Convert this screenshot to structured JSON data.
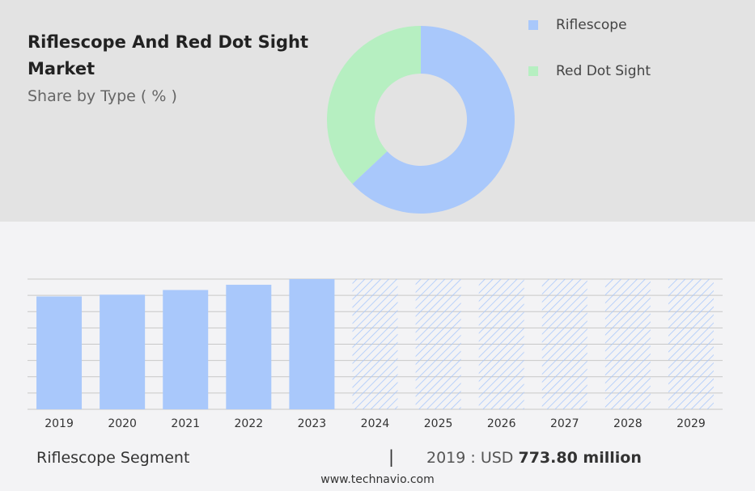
{
  "title": "Riflescope And Red Dot Sight Market",
  "subtitle": "Share by Type ( % )",
  "colors": {
    "riflescope": "#a9c8fb",
    "red_dot_sight": "#b6efc1",
    "forecast_hatch": "#a9c8fb",
    "grid": "#c8c8c8"
  },
  "legend": [
    {
      "label": "Riflescope",
      "color": "#a9c8fb"
    },
    {
      "label": "Red Dot Sight",
      "color": "#b6efc1"
    }
  ],
  "chart_data": [
    {
      "type": "pie",
      "subtype": "donut",
      "labels": [
        "Riflescope",
        "Red Dot Sight"
      ],
      "values": [
        63,
        37
      ],
      "colors": [
        "#a9c8fb",
        "#b6efc1"
      ]
    },
    {
      "type": "bar",
      "categories": [
        "2019",
        "2020",
        "2021",
        "2022",
        "2023",
        "2024",
        "2025",
        "2026",
        "2027",
        "2028",
        "2029"
      ],
      "values": [
        773.8,
        786,
        818,
        854,
        893,
        893,
        893,
        893,
        893,
        893,
        893
      ],
      "forecast_from": "2024",
      "forecast_style": "hatched",
      "ylim": [
        0,
        893
      ],
      "grid": true
    }
  ],
  "footer": {
    "segment": "Riflescope Segment",
    "separator": "|",
    "year_prefix": "2019 : USD ",
    "value": "773.80 million",
    "url": "www.technavio.com"
  }
}
